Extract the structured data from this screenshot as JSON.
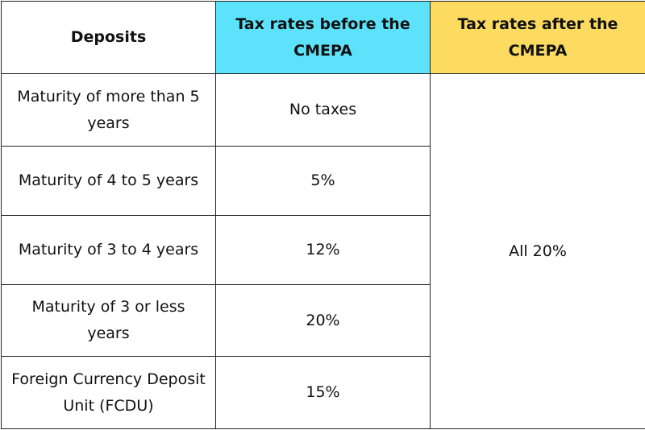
{
  "header": {
    "deposits": "Deposits",
    "before": "Tax rates before the CMEPA",
    "after": "Tax rates after the CMEPA"
  },
  "rows": [
    {
      "deposit": "Maturity of more than 5 years",
      "before": "No taxes"
    },
    {
      "deposit": "Maturity of 4 to 5 years",
      "before": "5%"
    },
    {
      "deposit": "Maturity of 3 to 4 years",
      "before": "12%"
    },
    {
      "deposit": "Maturity of 3 or less years",
      "before": "20%"
    },
    {
      "deposit": "Foreign Currency Deposit Unit (FCDU)",
      "before": "15%"
    }
  ],
  "after_all": "All 20%",
  "colors": {
    "before_header": "#5ce3fb",
    "after_header": "#fddb60"
  }
}
